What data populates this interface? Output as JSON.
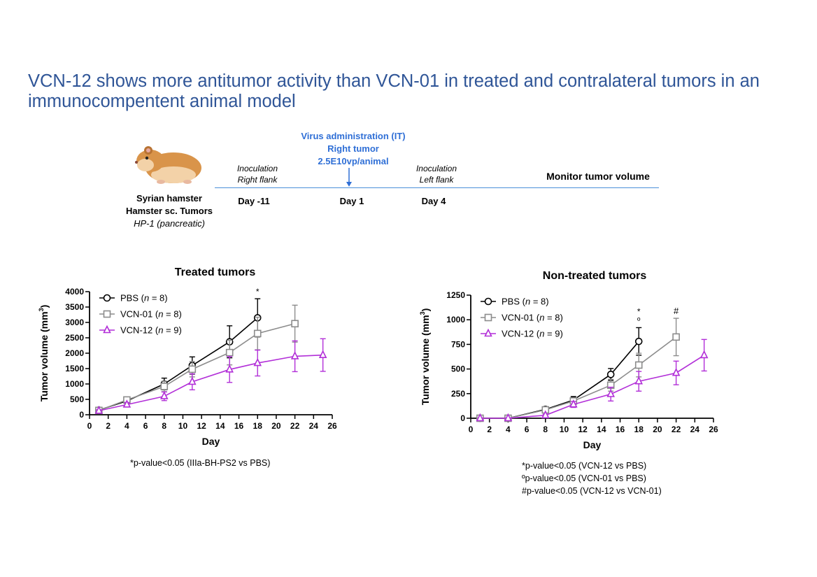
{
  "title": "VCN-12 shows more antitumor activity than VCN-01 in treated and contralateral tumors in an immunocompentent animal model",
  "timeline": {
    "animal_line1": "Syrian hamster",
    "animal_line2": "Hamster sc. Tumors",
    "animal_line3": "HP-1 (pancreatic)",
    "event1_line1": "Inoculation",
    "event1_line2": "Right flank",
    "event1_day": "Day -11",
    "virus_line1": "Virus administration (IT)",
    "virus_line2": "Right tumor",
    "virus_line3": "2.5E10vp/animal",
    "event2_day": "Day 1",
    "event3_line1": "Inoculation",
    "event3_line2": "Left flank",
    "event3_day": "Day 4",
    "monitor": "Monitor tumor volume",
    "colors": {
      "line": "#4a90d9",
      "arrow": "#2f6fd6",
      "virus_text": "#2f6fd6"
    }
  },
  "chart_data": [
    {
      "type": "line",
      "title": "Treated tumors",
      "xlabel": "Day",
      "ylabel": "Tumor volume (mm3)",
      "ylabel_main": "Tumor volume (mm",
      "ylabel_sup": "3",
      "ylabel_end": ")",
      "xlim": [
        0,
        26
      ],
      "ylim": [
        0,
        4000
      ],
      "xticks": [
        0,
        2,
        4,
        6,
        8,
        10,
        12,
        14,
        16,
        18,
        20,
        22,
        24,
        26
      ],
      "yticks": [
        0,
        500,
        1000,
        1500,
        2000,
        2500,
        3000,
        3500,
        4000
      ],
      "series": [
        {
          "name": "PBS",
          "n_label": "n",
          "n_value": " = 8",
          "label_prefix": "PBS (",
          "color": "#000000",
          "marker": "circle",
          "x": [
            1,
            4,
            8,
            11,
            15,
            18
          ],
          "y": [
            150,
            450,
            1000,
            1600,
            2370,
            3150
          ],
          "err": [
            40,
            80,
            190,
            280,
            520,
            620
          ]
        },
        {
          "name": "VCN-01",
          "n_label": "n",
          "n_value": " = 8",
          "label_prefix": "VCN-01 (",
          "color": "#8c8c8c",
          "marker": "square",
          "x": [
            1,
            4,
            8,
            11,
            15,
            18,
            22
          ],
          "y": [
            140,
            480,
            920,
            1480,
            2020,
            2640,
            2960
          ],
          "err": [
            40,
            90,
            170,
            250,
            400,
            530,
            600
          ]
        },
        {
          "name": "VCN-12",
          "n_label": "n",
          "n_value": " = 9",
          "label_prefix": "VCN-12 (",
          "color": "#b22fd8",
          "marker": "triangle",
          "x": [
            1,
            4,
            8,
            11,
            15,
            18,
            22,
            25
          ],
          "y": [
            130,
            330,
            600,
            1070,
            1470,
            1680,
            1900,
            1940
          ],
          "err": [
            30,
            70,
            140,
            260,
            420,
            420,
            500,
            530
          ]
        }
      ],
      "annotations": [
        {
          "x": 18,
          "text": "*"
        }
      ],
      "footnotes": [
        "*p-value<0.05 (IIIa-BH-PS2 vs PBS)"
      ]
    },
    {
      "type": "line",
      "title": "Non-treated tumors",
      "xlabel": "Day",
      "ylabel": "Tumor volume (mm3)",
      "ylabel_main": "Tumor volume (mm",
      "ylabel_sup": "3",
      "ylabel_end": ")",
      "xlim": [
        0,
        26
      ],
      "ylim": [
        0,
        1250
      ],
      "xticks": [
        0,
        2,
        4,
        6,
        8,
        10,
        12,
        14,
        16,
        18,
        20,
        22,
        24,
        26
      ],
      "yticks": [
        0,
        250,
        500,
        750,
        1000,
        1250
      ],
      "series": [
        {
          "name": "PBS",
          "n_label": "n",
          "n_value": " = 8",
          "label_prefix": "PBS (",
          "color": "#000000",
          "marker": "circle",
          "x": [
            1,
            4,
            8,
            11,
            15,
            18
          ],
          "y": [
            0,
            0,
            90,
            185,
            445,
            780
          ],
          "err": [
            0,
            0,
            15,
            35,
            60,
            140
          ]
        },
        {
          "name": "VCN-01",
          "n_label": "n",
          "n_value": " = 8",
          "label_prefix": "VCN-01 (",
          "color": "#8c8c8c",
          "marker": "square",
          "x": [
            1,
            4,
            8,
            11,
            15,
            18,
            22
          ],
          "y": [
            0,
            0,
            85,
            175,
            335,
            540,
            825
          ],
          "err": [
            0,
            0,
            15,
            30,
            60,
            120,
            190
          ]
        },
        {
          "name": "VCN-12",
          "n_label": "n",
          "n_value": " = 9",
          "label_prefix": "VCN-12 (",
          "color": "#b22fd8",
          "marker": "triangle",
          "x": [
            1,
            4,
            8,
            11,
            15,
            18,
            22,
            25
          ],
          "y": [
            0,
            0,
            30,
            140,
            245,
            375,
            460,
            640
          ],
          "err": [
            0,
            0,
            10,
            30,
            70,
            100,
            120,
            160
          ]
        }
      ],
      "annotations": [
        {
          "x": 18,
          "text": "*"
        },
        {
          "x": 18,
          "text": "º"
        },
        {
          "x": 22,
          "text": "#"
        }
      ],
      "footnotes": [
        "*p-value<0.05 (VCN-12 vs PBS)",
        "ºp-value<0.05 (VCN-01 vs PBS)",
        "#p-value<0.05 (VCN-12 vs VCN-01)"
      ]
    }
  ]
}
